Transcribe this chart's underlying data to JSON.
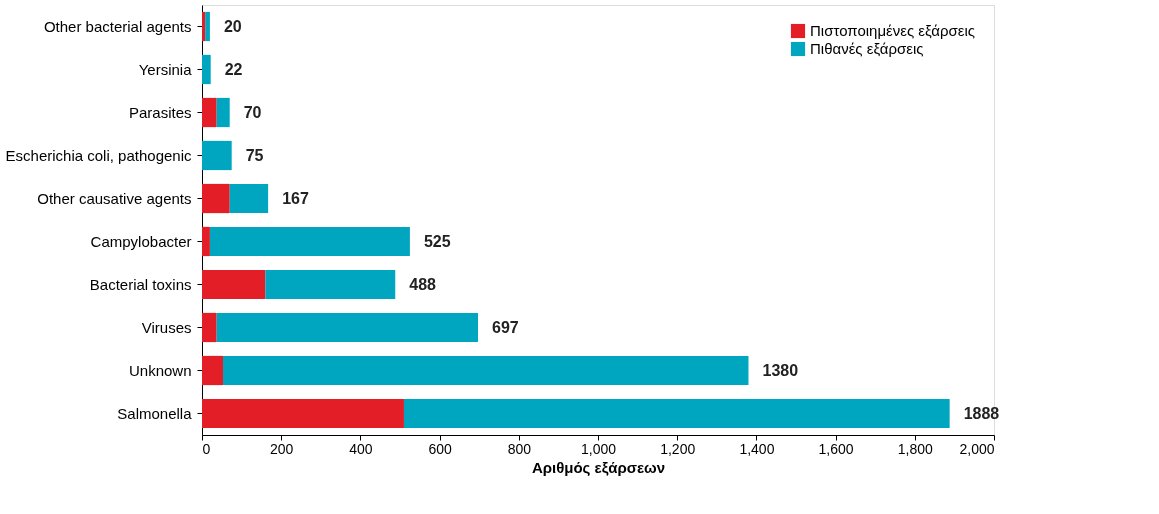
{
  "chart_data": {
    "type": "bar",
    "orientation": "horizontal",
    "stacked": true,
    "xlabel": "Αριθμός εξάρσεων",
    "categories": [
      "Other bacterial agents",
      "Yersinia",
      "Parasites",
      "Escherichia coli, pathogenic",
      "Other causative agents",
      "Campylobacter",
      "Bacterial toxins",
      "Viruses",
      "Unknown",
      "Salmonella"
    ],
    "series": [
      {
        "name": "Πιστοποιημένες εξάρσεις",
        "color": "#e41e26",
        "values": [
          8,
          0,
          37,
          0,
          70,
          20,
          160,
          37,
          53,
          510
        ]
      },
      {
        "name": "Πιθανές εξάρσεις",
        "color": "#00a6c0",
        "values": [
          12,
          22,
          33,
          75,
          97,
          505,
          328,
          660,
          1327,
          1378
        ]
      }
    ],
    "totals": [
      "20",
      "22",
      "70",
      "75",
      "167",
      "525",
      "488",
      "697",
      "1380",
      "1888"
    ],
    "xlim": [
      0,
      2000
    ],
    "xticks": [
      0,
      {
        "value": 200,
        "label": "200"
      },
      {
        "value": 400,
        "label": "400"
      },
      {
        "value": 600,
        "label": "600"
      },
      {
        "value": 800,
        "label": "800"
      },
      {
        "value": 1000,
        "label": "1,000"
      },
      {
        "value": 1200,
        "label": "1,200"
      },
      {
        "value": 1400,
        "label": "1,400"
      },
      {
        "value": 1600,
        "label": "1,600"
      },
      {
        "value": 1800,
        "label": "1,800"
      },
      {
        "value": 2000,
        "label": "2,000"
      }
    ],
    "grid": false,
    "legend": "top right"
  }
}
